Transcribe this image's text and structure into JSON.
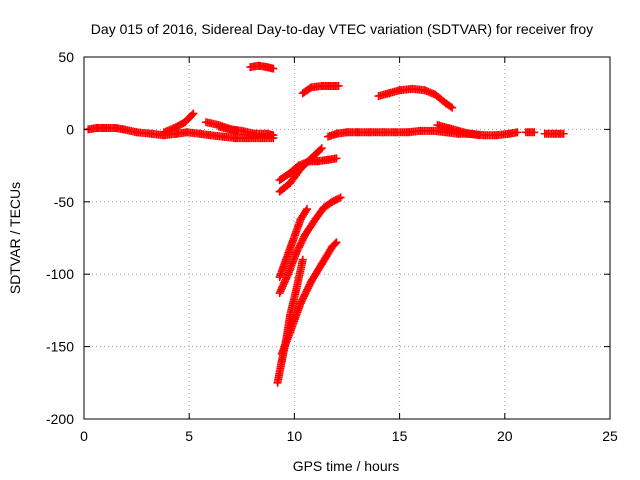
{
  "chart_data": {
    "type": "scatter",
    "title": "Day 015 of 2016, Sidereal Day-to-day VTEC variation (SDTVAR) for receiver froy",
    "xlabel": "GPS time / hours",
    "ylabel": "SDTVAR / TECUs",
    "xlim": [
      0,
      25
    ],
    "ylim": [
      -200,
      50
    ],
    "xticks": [
      0,
      5,
      10,
      15,
      20,
      25
    ],
    "yticks": [
      -200,
      -150,
      -100,
      -50,
      0,
      50
    ],
    "grid": true,
    "marker": "plus",
    "series_color": "#ff0000",
    "series": [
      {
        "segments": [
          [
            [
              0.2,
              0
            ],
            [
              0.6,
              1
            ],
            [
              1.0,
              1
            ],
            [
              1.5,
              1
            ],
            [
              1.9,
              0
            ]
          ],
          [
            [
              1.9,
              0
            ],
            [
              2.5,
              -2
            ],
            [
              3.2,
              -3
            ],
            [
              3.8,
              -4
            ],
            [
              4.4,
              -3
            ],
            [
              4.9,
              -2
            ],
            [
              5.5,
              -3
            ],
            [
              6.0,
              -4
            ],
            [
              6.6,
              -5
            ],
            [
              7.2,
              -6
            ],
            [
              7.8,
              -6
            ],
            [
              8.4,
              -6
            ],
            [
              9.0,
              -6
            ]
          ],
          [
            [
              3.8,
              -2
            ],
            [
              4.3,
              1
            ],
            [
              4.8,
              5
            ],
            [
              5.2,
              11
            ]
          ],
          [
            [
              5.8,
              5
            ],
            [
              6.4,
              3
            ],
            [
              7.0,
              0
            ],
            [
              7.5,
              -1
            ],
            [
              8.1,
              -3
            ],
            [
              8.7,
              -3
            ],
            [
              9.0,
              -4
            ]
          ],
          [
            [
              6.4,
              2
            ],
            [
              6.9,
              0
            ],
            [
              7.3,
              -1
            ]
          ],
          [
            [
              7.9,
              43
            ],
            [
              8.3,
              44
            ],
            [
              8.7,
              43
            ],
            [
              9.0,
              42
            ]
          ],
          [
            [
              9.3,
              -35
            ],
            [
              9.8,
              -30
            ],
            [
              10.2,
              -25
            ],
            [
              10.7,
              -22
            ],
            [
              11.1,
              -22
            ],
            [
              11.6,
              -21
            ],
            [
              12.0,
              -20
            ]
          ],
          [
            [
              9.3,
              -43
            ],
            [
              9.8,
              -37
            ],
            [
              10.3,
              -27
            ],
            [
              10.8,
              -20
            ],
            [
              11.3,
              -13
            ]
          ],
          [
            [
              10.4,
              25
            ],
            [
              10.8,
              29
            ],
            [
              11.3,
              30
            ],
            [
              11.7,
              30
            ],
            [
              12.1,
              30
            ]
          ],
          [
            [
              9.3,
              -102
            ],
            [
              9.6,
              -90
            ],
            [
              9.9,
              -78
            ],
            [
              10.3,
              -62
            ],
            [
              10.6,
              -55
            ]
          ],
          [
            [
              9.3,
              -113
            ],
            [
              9.7,
              -100
            ],
            [
              10.1,
              -85
            ],
            [
              10.5,
              -73
            ],
            [
              11.0,
              -62
            ],
            [
              11.4,
              -54
            ],
            [
              11.8,
              -50
            ],
            [
              12.2,
              -47
            ]
          ],
          [
            [
              9.2,
              -175
            ],
            [
              9.4,
              -160
            ],
            [
              9.6,
              -146
            ],
            [
              9.8,
              -128
            ],
            [
              10.1,
              -110
            ],
            [
              10.4,
              -90
            ]
          ],
          [
            [
              9.4,
              -155
            ],
            [
              9.8,
              -140
            ],
            [
              10.3,
              -120
            ],
            [
              10.8,
              -105
            ],
            [
              11.3,
              -93
            ],
            [
              11.8,
              -81
            ],
            [
              12.0,
              -78
            ]
          ],
          [
            [
              11.6,
              -5
            ],
            [
              12.0,
              -3
            ],
            [
              12.5,
              -2
            ],
            [
              13.0,
              -2
            ],
            [
              13.6,
              -2
            ],
            [
              14.2,
              -2
            ],
            [
              14.8,
              -2
            ],
            [
              15.4,
              -2
            ],
            [
              16.0,
              -1
            ],
            [
              16.6,
              -1
            ],
            [
              17.2,
              -2
            ],
            [
              17.8,
              -3
            ],
            [
              18.4,
              -3
            ],
            [
              19.0,
              -4
            ],
            [
              19.6,
              -4
            ],
            [
              20.2,
              -3
            ],
            [
              20.6,
              -2
            ]
          ],
          [
            [
              14.0,
              23
            ],
            [
              14.5,
              25
            ],
            [
              15.0,
              27
            ],
            [
              15.6,
              28
            ],
            [
              16.2,
              27
            ],
            [
              16.7,
              24
            ],
            [
              17.2,
              18
            ],
            [
              17.5,
              15
            ]
          ],
          [
            [
              16.8,
              3
            ],
            [
              17.3,
              1
            ],
            [
              17.8,
              -1
            ],
            [
              18.3,
              -3
            ],
            [
              18.8,
              -4
            ]
          ],
          [
            [
              21.0,
              -2
            ],
            [
              21.4,
              -2
            ]
          ],
          [
            [
              21.9,
              -3
            ],
            [
              22.4,
              -3
            ],
            [
              22.8,
              -3
            ]
          ]
        ]
      }
    ]
  }
}
